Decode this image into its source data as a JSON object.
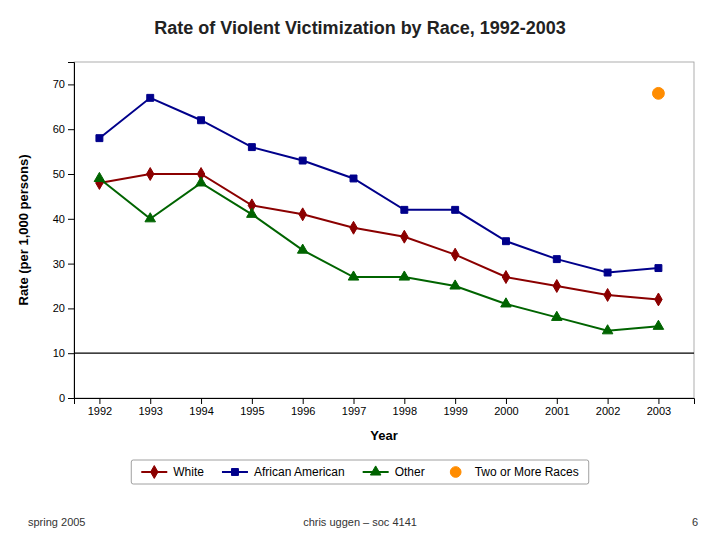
{
  "chart_data": {
    "type": "line",
    "title": "Rate of Violent Victimization by Race, 1992-2003",
    "xlabel": "Year",
    "ylabel": "Rate (per 1,000 persons)",
    "x": [
      1992,
      1993,
      1994,
      1995,
      1996,
      1997,
      1998,
      1999,
      2000,
      2001,
      2002,
      2003
    ],
    "xlim": [
      1991.5,
      2003.7
    ],
    "xticks": [
      1992,
      1993,
      1994,
      1995,
      1996,
      1997,
      1998,
      1999,
      2000,
      2001,
      2002,
      2003
    ],
    "ylim": [
      0,
      75
    ],
    "yticks": [
      0,
      10,
      20,
      30,
      40,
      50,
      60,
      70
    ],
    "grid": false,
    "legend": "bottom",
    "reference_line": 10,
    "series": [
      {
        "name": "White",
        "color": "#8B0000",
        "marker": "diamond",
        "type": "line",
        "values": [
          48,
          50,
          50,
          43,
          41,
          38,
          36,
          32,
          27,
          25,
          23,
          22
        ]
      },
      {
        "name": "African American",
        "color": "#00008B",
        "marker": "square",
        "type": "line",
        "values": [
          58,
          67,
          62,
          56,
          53,
          49,
          42,
          42,
          35,
          31,
          28,
          29
        ]
      },
      {
        "name": "Other",
        "color": "#006400",
        "marker": "triangle",
        "type": "line",
        "values": [
          49,
          40,
          48,
          41,
          33,
          27,
          27,
          25,
          21,
          18,
          15,
          16
        ]
      },
      {
        "name": "Two or More Races",
        "color": "#FF8C00",
        "marker": "circle",
        "type": "scatter",
        "values": [
          null,
          null,
          null,
          null,
          null,
          null,
          null,
          null,
          null,
          null,
          null,
          68
        ]
      }
    ],
    "annotations": [
      "spring 2005",
      "chris uggen – soc 4141",
      "6"
    ]
  }
}
